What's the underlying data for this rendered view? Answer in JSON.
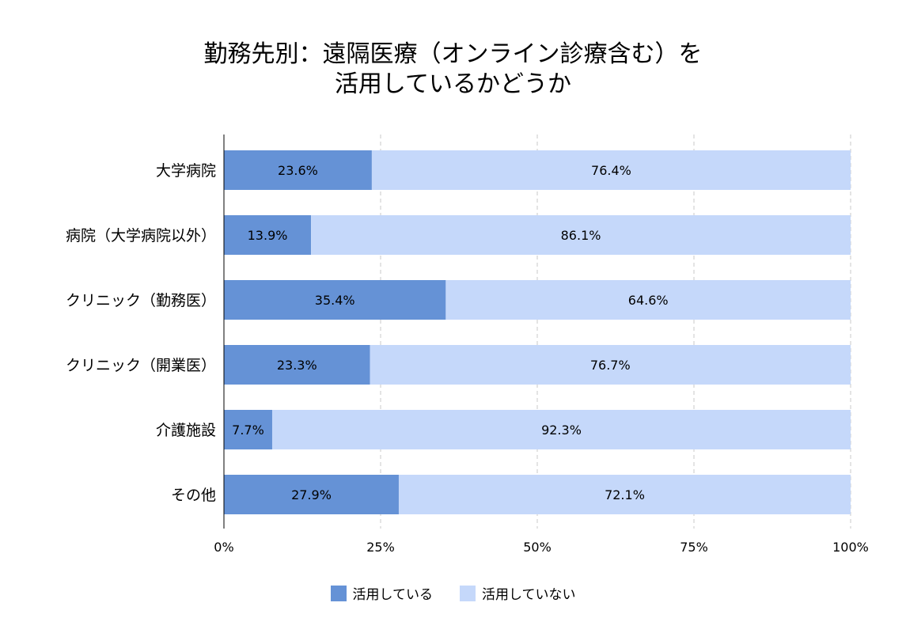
{
  "chart_data": {
    "type": "bar",
    "orientation": "horizontal",
    "stacked": "percent",
    "title_lines": [
      "勤務先別：遠隔医療（オンライン診療含む）を",
      "活用しているかどうか"
    ],
    "categories": [
      "大学病院",
      "病院（大学病院以外）",
      "クリニック（勤務医）",
      "クリニック（開業医）",
      "介護施設",
      "その他"
    ],
    "series": [
      {
        "name": "活用している",
        "color": "#6592d6",
        "values": [
          23.6,
          13.9,
          35.4,
          23.3,
          7.7,
          27.9
        ],
        "labels": [
          "23.6%",
          "13.9%",
          "35.4%",
          "23.3%",
          "7.7%",
          "27.9%"
        ]
      },
      {
        "name": "活用していない",
        "color": "#c5d8fa",
        "values": [
          76.4,
          86.1,
          64.6,
          76.7,
          92.3,
          72.1
        ],
        "labels": [
          "76.4%",
          "86.1%",
          "64.6%",
          "76.7%",
          "92.3%",
          "72.1%"
        ]
      }
    ],
    "xlim": [
      0,
      100
    ],
    "x_ticks": [
      0,
      25,
      50,
      75,
      100
    ],
    "x_tick_labels": [
      "0%",
      "25%",
      "50%",
      "75%",
      "100%"
    ],
    "grid": "vertical-dashed",
    "legend_position": "bottom"
  }
}
